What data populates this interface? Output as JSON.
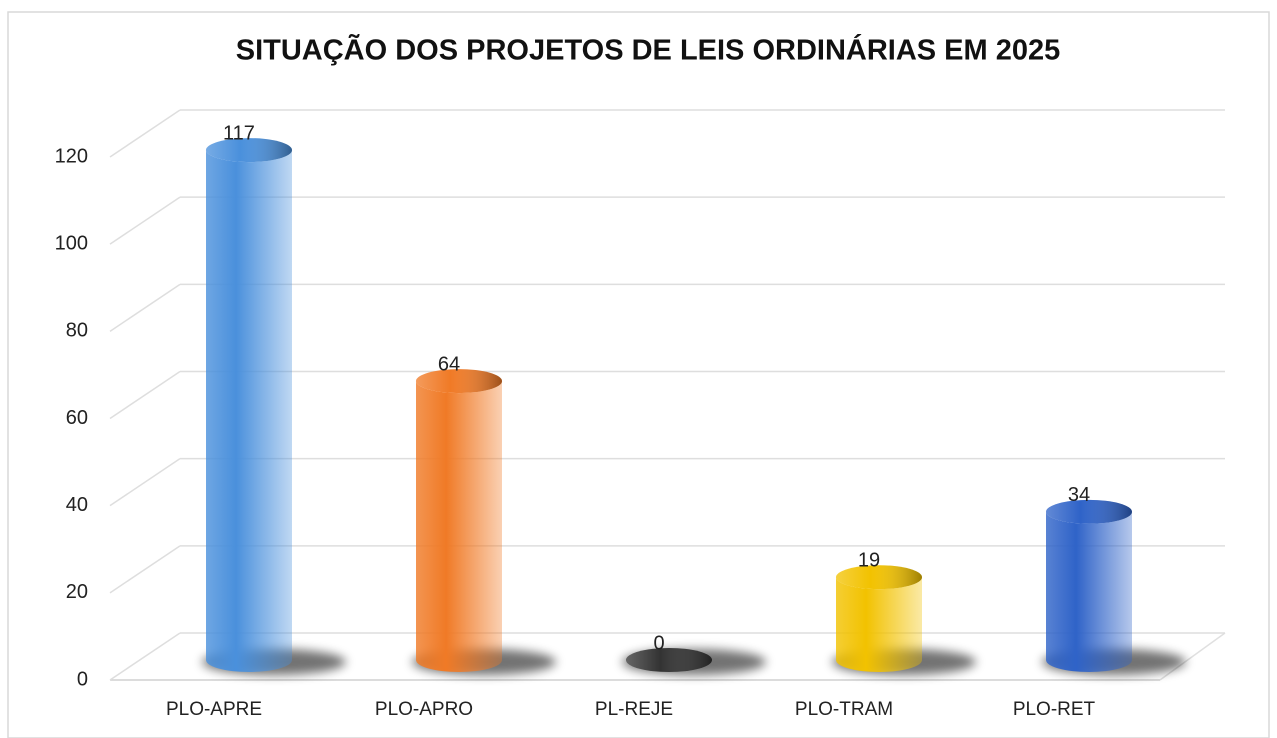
{
  "chart_data": {
    "type": "bar",
    "title": "SITUAÇÃO DOS PROJETOS DE LEIS ORDINÁRIAS EM 2025",
    "categories": [
      "PLO-APRE",
      "PLO-APRO",
      "PL-REJE",
      "PLO-TRAM",
      "PLO-RET"
    ],
    "values": [
      117,
      64,
      0,
      19,
      34
    ],
    "colors": [
      "#4a90dc",
      "#f07a26",
      "#333333",
      "#f2c200",
      "#2f63c8"
    ],
    "ylim": [
      0,
      120
    ],
    "yticks": [
      0,
      20,
      40,
      60,
      80,
      100,
      120
    ],
    "grid": true
  }
}
